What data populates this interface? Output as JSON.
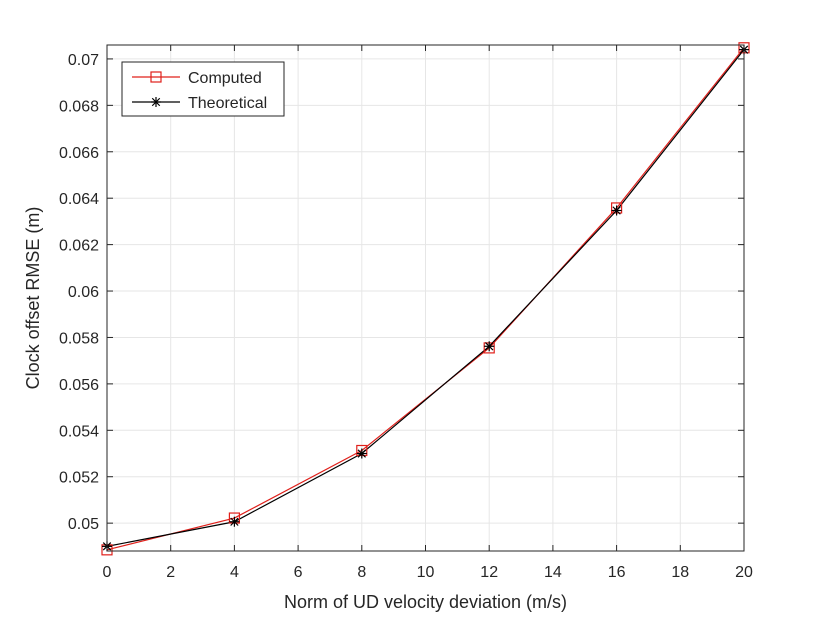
{
  "colors": {
    "computed": "#e0201b",
    "theoretical": "#000000",
    "grid": "#e6e6e6",
    "axis": "#262626"
  },
  "chart_data": {
    "type": "line",
    "xlabel": "Norm of UD velocity deviation (m/s)",
    "ylabel": "Clock offset RMSE (m)",
    "xlim": [
      0,
      20
    ],
    "ylim": [
      0.0488,
      0.0706
    ],
    "xticks": [
      0,
      2,
      4,
      6,
      8,
      10,
      12,
      14,
      16,
      18,
      20
    ],
    "xtick_labels": [
      "0",
      "2",
      "4",
      "6",
      "8",
      "10",
      "12",
      "14",
      "16",
      "18",
      "20"
    ],
    "yticks": [
      0.05,
      0.052,
      0.054,
      0.056,
      0.058,
      0.06,
      0.062,
      0.064,
      0.066,
      0.068,
      0.07
    ],
    "ytick_labels": [
      "0.05",
      "0.052",
      "0.054",
      "0.056",
      "0.058",
      "0.06",
      "0.062",
      "0.064",
      "0.066",
      "0.068",
      "0.07"
    ],
    "grid": true,
    "legend_position": "top-left",
    "x": [
      0,
      4,
      8,
      12,
      16,
      20
    ],
    "series": [
      {
        "name": "Computed",
        "marker": "square",
        "values": [
          0.04885,
          0.05022,
          0.05313,
          0.05755,
          0.06358,
          0.07048
        ]
      },
      {
        "name": "Theoretical",
        "marker": "asterisk",
        "values": [
          0.049,
          0.05006,
          0.053,
          0.05762,
          0.06347,
          0.0704
        ]
      }
    ]
  }
}
